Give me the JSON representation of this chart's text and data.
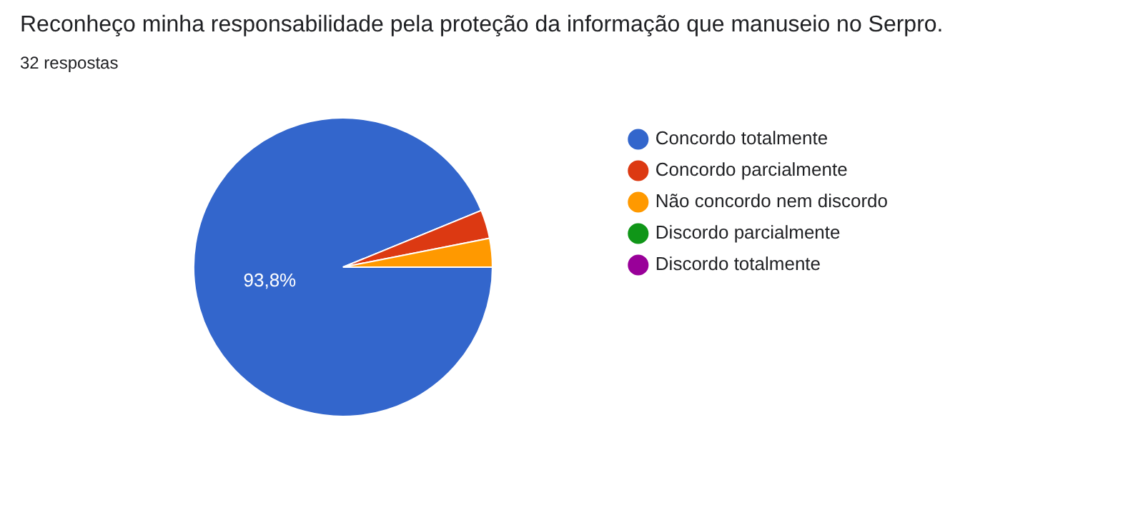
{
  "chart_data": {
    "type": "pie",
    "title": "Reconheço minha responsabilidade pela proteção da informação que manuseio no Serpro.",
    "subtitle": "32 respostas",
    "categories": [
      "Concordo totalmente",
      "Concordo parcialmente",
      "Não concordo nem discordo",
      "Discordo parcialmente",
      "Discordo totalmente"
    ],
    "values": [
      93.8,
      3.1,
      3.1,
      0,
      0
    ],
    "colors": [
      "#3366cc",
      "#dc3912",
      "#ff9900",
      "#109618",
      "#990099"
    ],
    "value_labels": [
      "93,8%",
      null,
      null,
      null,
      null
    ],
    "legend": "right"
  }
}
